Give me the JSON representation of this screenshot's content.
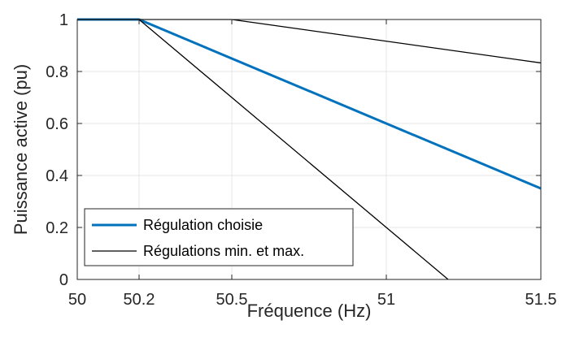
{
  "chart_data": {
    "type": "line",
    "xlabel": "Fréquence (Hz)",
    "ylabel": "Puissance active (pu)",
    "xlim": [
      50,
      51.5
    ],
    "ylim": [
      0,
      1
    ],
    "xticks": [
      50,
      50.2,
      50.5,
      51,
      51.5
    ],
    "xtick_labels": [
      "50",
      "50.2",
      "50.5",
      "51",
      "51.5"
    ],
    "yticks": [
      0,
      0.2,
      0.4,
      0.6,
      0.8,
      1
    ],
    "ytick_labels": [
      "0",
      "0.2",
      "0.4",
      "0.6",
      "0.8",
      "1"
    ],
    "grid": true,
    "legend_position": "bottom-left",
    "series": [
      {
        "name": "Régulation choisie",
        "color": "#0072BD",
        "x": [
          50,
          50.2,
          51.5
        ],
        "y": [
          1,
          1,
          0.35
        ]
      },
      {
        "name": "Régulations min. et max.",
        "color": "#000000",
        "x": [
          50,
          50.5,
          51.5
        ],
        "y": [
          1,
          1,
          0.833
        ]
      },
      {
        "name": "",
        "legend_group": "Régulations min. et max.",
        "color": "#000000",
        "x": [
          50,
          50.2,
          51.2
        ],
        "y": [
          1,
          1,
          0
        ]
      }
    ]
  }
}
